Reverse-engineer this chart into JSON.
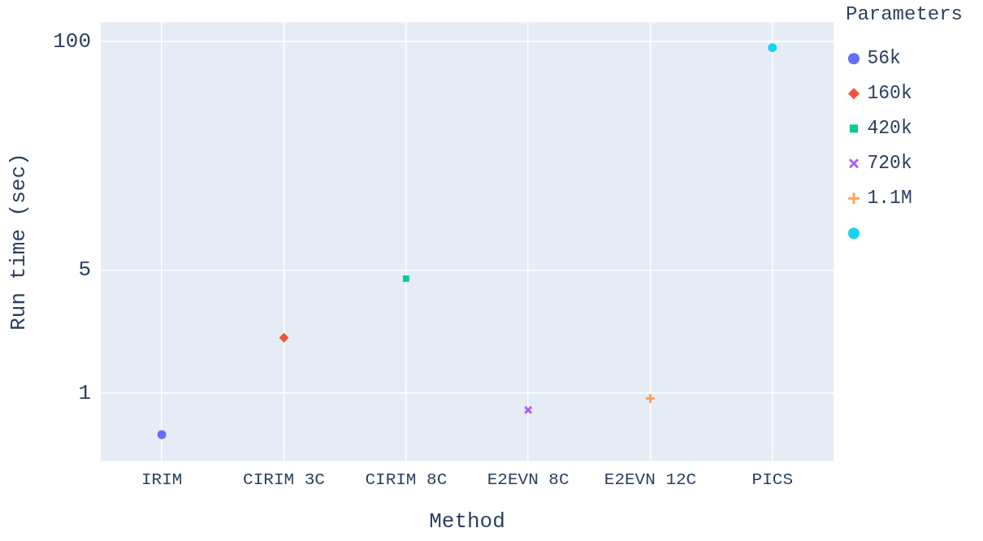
{
  "chart_data": {
    "type": "scatter",
    "xlabel": "Method",
    "ylabel": "Run time (sec)",
    "legend_title": "Parameters",
    "categories": [
      "IRIM",
      "CIRIM 3C",
      "CIRIM 8C",
      "E2EVN 8C",
      "E2EVN 12C",
      "PICS"
    ],
    "log": "y",
    "ylim": [
      0.41,
      128
    ],
    "yticks": [
      1,
      5,
      100
    ],
    "grid": true,
    "legend": "right",
    "series": [
      {
        "name": "56k",
        "color": "#636efa",
        "marker": "circle",
        "x": [
          "IRIM"
        ],
        "values": [
          0.58
        ]
      },
      {
        "name": "160k",
        "color": "#ef553b",
        "marker": "diamond",
        "x": [
          "CIRIM 3C"
        ],
        "values": [
          2.06
        ]
      },
      {
        "name": "420k",
        "color": "#00cc96",
        "marker": "square",
        "x": [
          "CIRIM 8C"
        ],
        "values": [
          4.47
        ]
      },
      {
        "name": "720k",
        "color": "#ab63fa",
        "marker": "x",
        "x": [
          "E2EVN 8C"
        ],
        "values": [
          0.8
        ]
      },
      {
        "name": "1.1M",
        "color": "#ffa15a",
        "marker": "cross",
        "x": [
          "E2EVN 12C"
        ],
        "values": [
          0.93
        ]
      },
      {
        "color": "#19d3f3",
        "marker": "circle",
        "x": [
          "PICS"
        ],
        "values": [
          92
        ]
      }
    ]
  }
}
